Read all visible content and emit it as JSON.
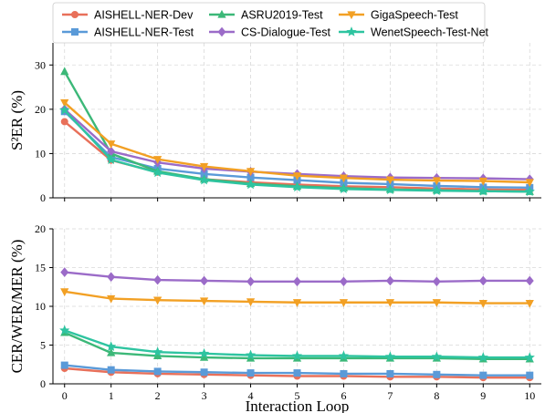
{
  "chart_data": [
    {
      "type": "line",
      "ylabel": "S²ER (%)",
      "xlabel": "",
      "ylim": [
        0,
        35
      ],
      "yticks": [
        0,
        10,
        20,
        30
      ],
      "x": [
        0,
        1,
        2,
        3,
        4,
        5,
        6,
        7,
        8,
        9,
        10
      ],
      "grid": true,
      "series": [
        {
          "name": "AISHELL-NER-Dev",
          "values": [
            17.2,
            8.5,
            5.8,
            4.2,
            3.5,
            3.0,
            2.6,
            2.4,
            2.1,
            1.9,
            1.8
          ]
        },
        {
          "name": "AISHELL-NER-Test",
          "values": [
            19.5,
            9.2,
            6.6,
            5.4,
            4.6,
            4.0,
            3.4,
            3.1,
            2.7,
            2.4,
            2.3
          ]
        },
        {
          "name": "ASRU2019-Test",
          "values": [
            28.5,
            10.0,
            6.0,
            4.2,
            3.2,
            2.6,
            2.2,
            1.9,
            1.7,
            1.5,
            1.4
          ]
        },
        {
          "name": "CS-Dialogue-Test",
          "values": [
            20.0,
            10.5,
            8.0,
            6.6,
            5.9,
            5.4,
            4.9,
            4.6,
            4.5,
            4.4,
            4.2
          ]
        },
        {
          "name": "GigaSpeech-Test",
          "values": [
            21.5,
            12.2,
            8.7,
            7.1,
            6.0,
            5.0,
            4.5,
            4.1,
            3.9,
            3.8,
            3.5
          ]
        },
        {
          "name": "WenetSpeech-Test-Net",
          "values": [
            19.8,
            8.6,
            5.7,
            4.0,
            3.0,
            2.4,
            2.0,
            1.8,
            1.6,
            1.5,
            1.4
          ]
        }
      ]
    },
    {
      "type": "line",
      "ylabel": "CER/WER/MER (%)",
      "xlabel": "Interaction Loop",
      "ylim": [
        0,
        20
      ],
      "yticks": [
        0,
        5,
        10,
        15,
        20
      ],
      "x": [
        0,
        1,
        2,
        3,
        4,
        5,
        6,
        7,
        8,
        9,
        10
      ],
      "xticks": [
        "0",
        "1",
        "2",
        "3",
        "4",
        "5",
        "6",
        "7",
        "8",
        "9",
        "10"
      ],
      "grid": true,
      "series": [
        {
          "name": "AISHELL-NER-Dev",
          "values": [
            2.0,
            1.5,
            1.3,
            1.2,
            1.1,
            1.0,
            1.0,
            0.9,
            0.9,
            0.8,
            0.8
          ]
        },
        {
          "name": "AISHELL-NER-Test",
          "values": [
            2.4,
            1.8,
            1.6,
            1.5,
            1.4,
            1.4,
            1.3,
            1.3,
            1.2,
            1.1,
            1.1
          ]
        },
        {
          "name": "ASRU2019-Test",
          "values": [
            6.6,
            4.0,
            3.6,
            3.4,
            3.3,
            3.3,
            3.3,
            3.3,
            3.3,
            3.2,
            3.2
          ]
        },
        {
          "name": "CS-Dialogue-Test",
          "values": [
            14.4,
            13.8,
            13.4,
            13.3,
            13.2,
            13.2,
            13.2,
            13.3,
            13.2,
            13.3,
            13.3
          ]
        },
        {
          "name": "GigaSpeech-Test",
          "values": [
            11.9,
            11.0,
            10.8,
            10.7,
            10.6,
            10.5,
            10.5,
            10.5,
            10.5,
            10.4,
            10.4
          ]
        },
        {
          "name": "WenetSpeech-Test-Net",
          "values": [
            6.9,
            4.8,
            4.1,
            3.9,
            3.7,
            3.6,
            3.6,
            3.5,
            3.5,
            3.4,
            3.4
          ]
        }
      ]
    }
  ],
  "legend": {
    "placement": "top",
    "entries": [
      {
        "label": "AISHELL-NER-Dev",
        "color": "#e8705a",
        "marker": "circle"
      },
      {
        "label": "ASRU2019-Test",
        "color": "#3cb878",
        "marker": "triangle-up"
      },
      {
        "label": "GigaSpeech-Test",
        "color": "#f2a024",
        "marker": "triangle-down"
      },
      {
        "label": "AISHELL-NER-Test",
        "color": "#5a9ad8",
        "marker": "square"
      },
      {
        "label": "CS-Dialogue-Test",
        "color": "#9b6bc8",
        "marker": "diamond"
      },
      {
        "label": "WenetSpeech-Test-Net",
        "color": "#2ec4a0",
        "marker": "star"
      }
    ]
  },
  "series_styles": {
    "AISHELL-NER-Dev": {
      "color": "#e8705a",
      "marker": "circle"
    },
    "AISHELL-NER-Test": {
      "color": "#5a9ad8",
      "marker": "square"
    },
    "ASRU2019-Test": {
      "color": "#3cb878",
      "marker": "triangle-up"
    },
    "CS-Dialogue-Test": {
      "color": "#9b6bc8",
      "marker": "diamond"
    },
    "GigaSpeech-Test": {
      "color": "#f2a024",
      "marker": "triangle-down"
    },
    "WenetSpeech-Test-Net": {
      "color": "#2ec4a0",
      "marker": "star"
    }
  }
}
